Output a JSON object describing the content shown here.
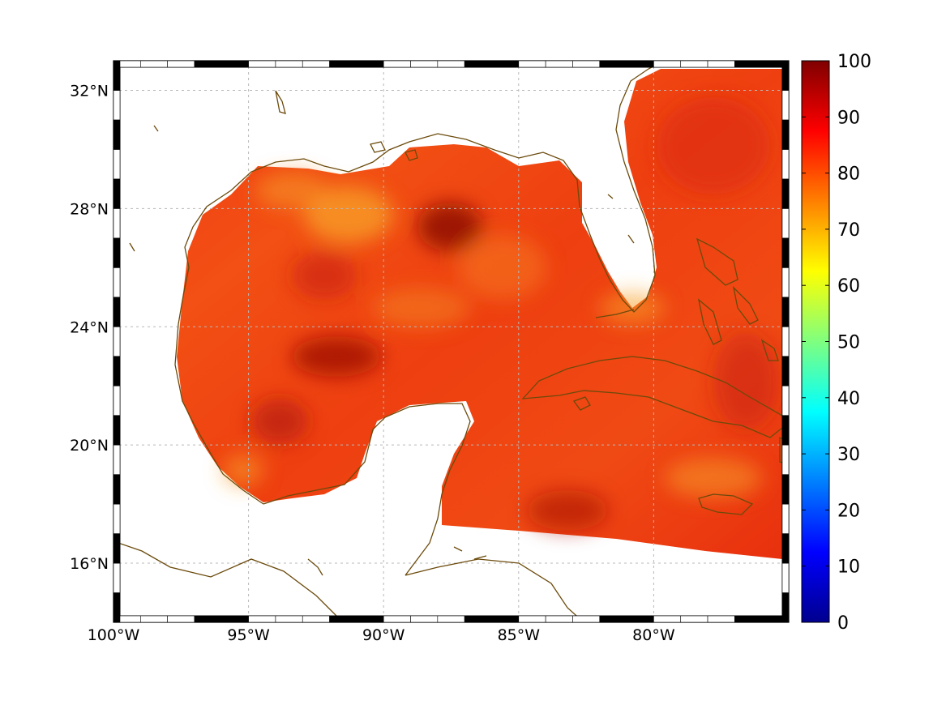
{
  "map": {
    "lon_range": [
      -100,
      -75
    ],
    "lat_range": [
      14,
      33
    ],
    "lon_ticks": [
      {
        "value": -100,
        "label": "100°W"
      },
      {
        "value": -95,
        "label": "95°W"
      },
      {
        "value": -90,
        "label": "90°W"
      },
      {
        "value": -85,
        "label": "85°W"
      },
      {
        "value": -80,
        "label": "80°W"
      }
    ],
    "lat_ticks": [
      {
        "value": 16,
        "label": "16°N"
      },
      {
        "value": 20,
        "label": "20°N"
      },
      {
        "value": 24,
        "label": "24°N"
      },
      {
        "value": 28,
        "label": "28°N"
      },
      {
        "value": 32,
        "label": "32°N"
      }
    ],
    "grid": true,
    "coastline_color": "#6b4a0b",
    "land_color": "#ffffff"
  },
  "colorbar": {
    "min": 0,
    "max": 100,
    "colormap": "jet",
    "ticks": [
      {
        "value": 0,
        "label": "0"
      },
      {
        "value": 10,
        "label": "10"
      },
      {
        "value": 20,
        "label": "20"
      },
      {
        "value": 30,
        "label": "30"
      },
      {
        "value": 40,
        "label": "40"
      },
      {
        "value": 50,
        "label": "50"
      },
      {
        "value": 60,
        "label": "60"
      },
      {
        "value": 70,
        "label": "70"
      },
      {
        "value": 80,
        "label": "80"
      },
      {
        "value": 90,
        "label": "90"
      },
      {
        "value": 100,
        "label": "100"
      }
    ]
  }
}
